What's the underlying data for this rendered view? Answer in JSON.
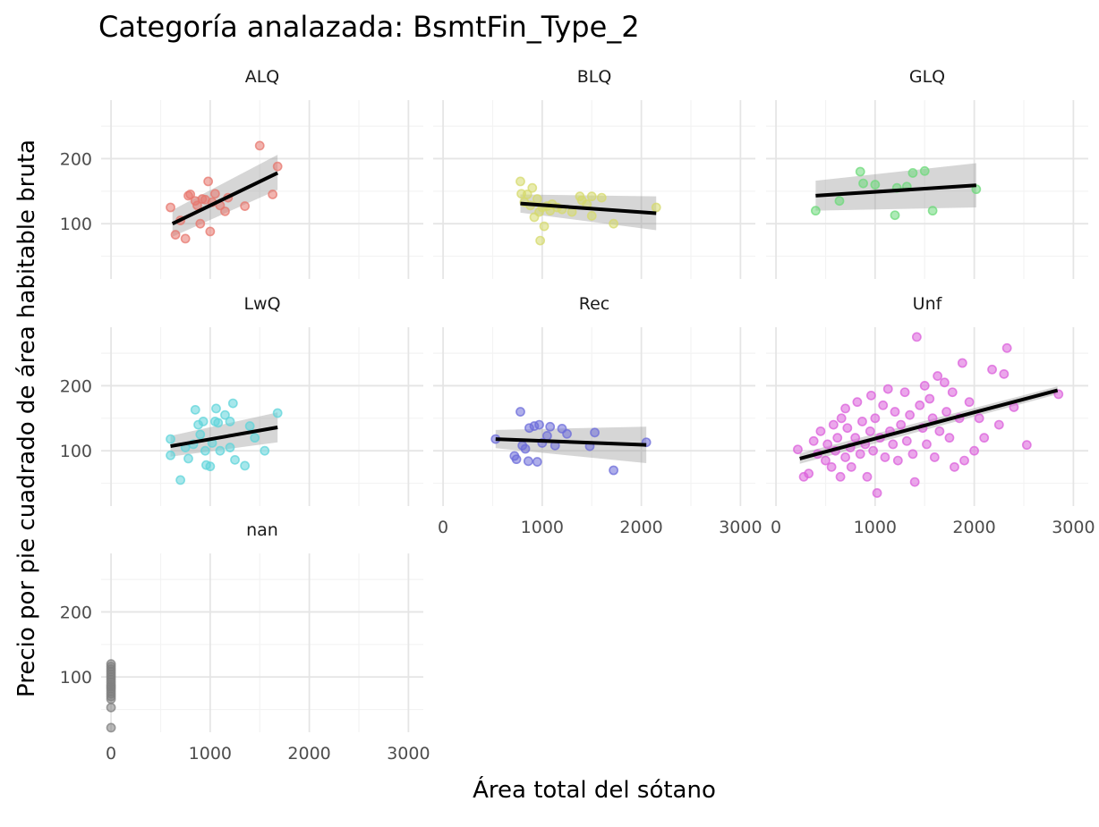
{
  "chart_data": {
    "type": "scatter",
    "title": "Categoría analazada: BsmtFin_Type_2",
    "xlabel": "Área total del sótano",
    "ylabel": "Precio por pie cuadrado de área habitable bruta",
    "xlim": [
      -100,
      3150
    ],
    "ylim": [
      15,
      290
    ],
    "x_ticks": [
      0,
      1000,
      2000,
      3000
    ],
    "y_ticks": [
      100,
      200
    ],
    "grid": true,
    "legend": "none",
    "facet_rows": 3,
    "facet_cols": 3,
    "panels": [
      {
        "name": "ALQ",
        "color": "#E7776E",
        "x_axis_labels": false,
        "y_axis_labels": true,
        "fit": {
          "x": [
            620,
            1680
          ],
          "y": [
            100,
            178
          ]
        },
        "band": {
          "upper": [
            121,
            206
          ],
          "lower": [
            80,
            152
          ]
        },
        "points": [
          [
            600,
            125
          ],
          [
            650,
            83
          ],
          [
            700,
            105
          ],
          [
            750,
            77
          ],
          [
            780,
            143
          ],
          [
            800,
            145
          ],
          [
            850,
            135
          ],
          [
            870,
            128
          ],
          [
            900,
            100
          ],
          [
            920,
            138
          ],
          [
            950,
            137
          ],
          [
            980,
            165
          ],
          [
            1000,
            88
          ],
          [
            1020,
            133
          ],
          [
            1050,
            146
          ],
          [
            1100,
            128
          ],
          [
            1150,
            119
          ],
          [
            1180,
            140
          ],
          [
            1350,
            127
          ],
          [
            1500,
            220
          ],
          [
            1630,
            145
          ],
          [
            1680,
            188
          ]
        ]
      },
      {
        "name": "BLQ",
        "color": "#D5DA6C",
        "x_axis_labels": false,
        "y_axis_labels": false,
        "fit": {
          "x": [
            780,
            2150
          ],
          "y": [
            131,
            116
          ]
        },
        "band": {
          "upper": [
            145,
            142
          ],
          "lower": [
            117,
            90
          ]
        },
        "points": [
          [
            780,
            165
          ],
          [
            790,
            146
          ],
          [
            820,
            133
          ],
          [
            850,
            145
          ],
          [
            880,
            128
          ],
          [
            900,
            155
          ],
          [
            920,
            110
          ],
          [
            950,
            138
          ],
          [
            970,
            118
          ],
          [
            980,
            74
          ],
          [
            1000,
            125
          ],
          [
            1020,
            96
          ],
          [
            1050,
            127
          ],
          [
            1080,
            120
          ],
          [
            1100,
            130
          ],
          [
            1150,
            125
          ],
          [
            1200,
            122
          ],
          [
            1300,
            118
          ],
          [
            1380,
            142
          ],
          [
            1400,
            136
          ],
          [
            1450,
            130
          ],
          [
            1500,
            142
          ],
          [
            1500,
            112
          ],
          [
            1600,
            140
          ],
          [
            1720,
            100
          ],
          [
            2150,
            125
          ]
        ]
      },
      {
        "name": "GLQ",
        "color": "#6CD97A",
        "x_axis_labels": false,
        "y_axis_labels": false,
        "fit": {
          "x": [
            400,
            2020
          ],
          "y": [
            143,
            159
          ]
        },
        "band": {
          "upper": [
            166,
            193
          ],
          "lower": [
            120,
            125
          ]
        },
        "points": [
          [
            400,
            120
          ],
          [
            640,
            135
          ],
          [
            850,
            180
          ],
          [
            880,
            162
          ],
          [
            1000,
            160
          ],
          [
            1200,
            113
          ],
          [
            1220,
            155
          ],
          [
            1320,
            157
          ],
          [
            1380,
            178
          ],
          [
            1500,
            181
          ],
          [
            1580,
            120
          ],
          [
            2020,
            153
          ]
        ]
      },
      {
        "name": "LwQ",
        "color": "#5FD4DA",
        "x_axis_labels": false,
        "y_axis_labels": true,
        "fit": {
          "x": [
            600,
            1680
          ],
          "y": [
            107,
            136
          ]
        },
        "band": {
          "upper": [
            123,
            159
          ],
          "lower": [
            91,
            113
          ]
        },
        "points": [
          [
            600,
            118
          ],
          [
            600,
            93
          ],
          [
            700,
            55
          ],
          [
            750,
            105
          ],
          [
            780,
            88
          ],
          [
            830,
            110
          ],
          [
            850,
            163
          ],
          [
            880,
            140
          ],
          [
            900,
            125
          ],
          [
            930,
            145
          ],
          [
            950,
            100
          ],
          [
            960,
            78
          ],
          [
            1000,
            76
          ],
          [
            1020,
            112
          ],
          [
            1050,
            145
          ],
          [
            1060,
            165
          ],
          [
            1080,
            143
          ],
          [
            1100,
            100
          ],
          [
            1150,
            155
          ],
          [
            1200,
            105
          ],
          [
            1200,
            145
          ],
          [
            1230,
            173
          ],
          [
            1250,
            86
          ],
          [
            1350,
            77
          ],
          [
            1400,
            138
          ],
          [
            1450,
            120
          ],
          [
            1550,
            100
          ],
          [
            1680,
            158
          ]
        ]
      },
      {
        "name": "Rec",
        "color": "#6B6BD9",
        "x_axis_labels": true,
        "y_axis_labels": false,
        "fit": {
          "x": [
            530,
            2050
          ],
          "y": [
            118,
            109
          ]
        },
        "band": {
          "upper": [
            132,
            137
          ],
          "lower": [
            104,
            81
          ]
        },
        "points": [
          [
            530,
            118
          ],
          [
            720,
            92
          ],
          [
            740,
            87
          ],
          [
            780,
            160
          ],
          [
            800,
            108
          ],
          [
            830,
            103
          ],
          [
            860,
            84
          ],
          [
            870,
            135
          ],
          [
            920,
            138
          ],
          [
            950,
            83
          ],
          [
            970,
            140
          ],
          [
            1000,
            112
          ],
          [
            1050,
            123
          ],
          [
            1080,
            137
          ],
          [
            1130,
            108
          ],
          [
            1200,
            134
          ],
          [
            1250,
            126
          ],
          [
            1480,
            107
          ],
          [
            1530,
            128
          ],
          [
            1720,
            70
          ],
          [
            2050,
            113
          ]
        ]
      },
      {
        "name": "Unf",
        "color": "#DB5FDB",
        "x_axis_labels": true,
        "y_axis_labels": false,
        "fit": {
          "x": [
            240,
            2840
          ],
          "y": [
            88,
            193
          ]
        },
        "band": {
          "upper": [
            96,
            199
          ],
          "lower": [
            80,
            187
          ]
        },
        "points": [
          [
            220,
            102
          ],
          [
            280,
            60
          ],
          [
            330,
            65
          ],
          [
            380,
            115
          ],
          [
            420,
            95
          ],
          [
            450,
            130
          ],
          [
            500,
            85
          ],
          [
            520,
            110
          ],
          [
            560,
            75
          ],
          [
            580,
            140
          ],
          [
            600,
            100
          ],
          [
            620,
            120
          ],
          [
            650,
            60
          ],
          [
            660,
            150
          ],
          [
            700,
            90
          ],
          [
            700,
            165
          ],
          [
            720,
            135
          ],
          [
            750,
            105
          ],
          [
            760,
            75
          ],
          [
            800,
            120
          ],
          [
            820,
            175
          ],
          [
            850,
            95
          ],
          [
            870,
            145
          ],
          [
            900,
            110
          ],
          [
            920,
            60
          ],
          [
            950,
            130
          ],
          [
            960,
            185
          ],
          [
            980,
            100
          ],
          [
            1000,
            150
          ],
          [
            1020,
            35
          ],
          [
            1050,
            120
          ],
          [
            1080,
            170
          ],
          [
            1100,
            90
          ],
          [
            1130,
            195
          ],
          [
            1150,
            130
          ],
          [
            1180,
            110
          ],
          [
            1200,
            160
          ],
          [
            1230,
            85
          ],
          [
            1260,
            140
          ],
          [
            1300,
            190
          ],
          [
            1320,
            115
          ],
          [
            1350,
            155
          ],
          [
            1380,
            95
          ],
          [
            1400,
            52
          ],
          [
            1420,
            275
          ],
          [
            1450,
            170
          ],
          [
            1480,
            135
          ],
          [
            1500,
            200
          ],
          [
            1520,
            110
          ],
          [
            1550,
            180
          ],
          [
            1580,
            150
          ],
          [
            1600,
            90
          ],
          [
            1630,
            215
          ],
          [
            1650,
            130
          ],
          [
            1700,
            205
          ],
          [
            1720,
            160
          ],
          [
            1750,
            120
          ],
          [
            1780,
            190
          ],
          [
            1800,
            75
          ],
          [
            1850,
            150
          ],
          [
            1880,
            235
          ],
          [
            1900,
            85
          ],
          [
            1950,
            175
          ],
          [
            2000,
            100
          ],
          [
            2050,
            150
          ],
          [
            2100,
            120
          ],
          [
            2180,
            225
          ],
          [
            2250,
            140
          ],
          [
            2300,
            218
          ],
          [
            2330,
            258
          ],
          [
            2400,
            167
          ],
          [
            2530,
            109
          ],
          [
            2850,
            187
          ]
        ]
      },
      {
        "name": "nan",
        "color": "#7F7F7F",
        "x_axis_labels": true,
        "y_axis_labels": true,
        "fit": null,
        "band": null,
        "points": [
          [
            0,
            120
          ],
          [
            0,
            116
          ],
          [
            0,
            112
          ],
          [
            0,
            108
          ],
          [
            0,
            104
          ],
          [
            0,
            100
          ],
          [
            0,
            96
          ],
          [
            0,
            92
          ],
          [
            0,
            88
          ],
          [
            0,
            85
          ],
          [
            0,
            82
          ],
          [
            0,
            78
          ],
          [
            0,
            74
          ],
          [
            0,
            70
          ],
          [
            0,
            66
          ],
          [
            0,
            53
          ],
          [
            0,
            22
          ]
        ]
      }
    ]
  }
}
